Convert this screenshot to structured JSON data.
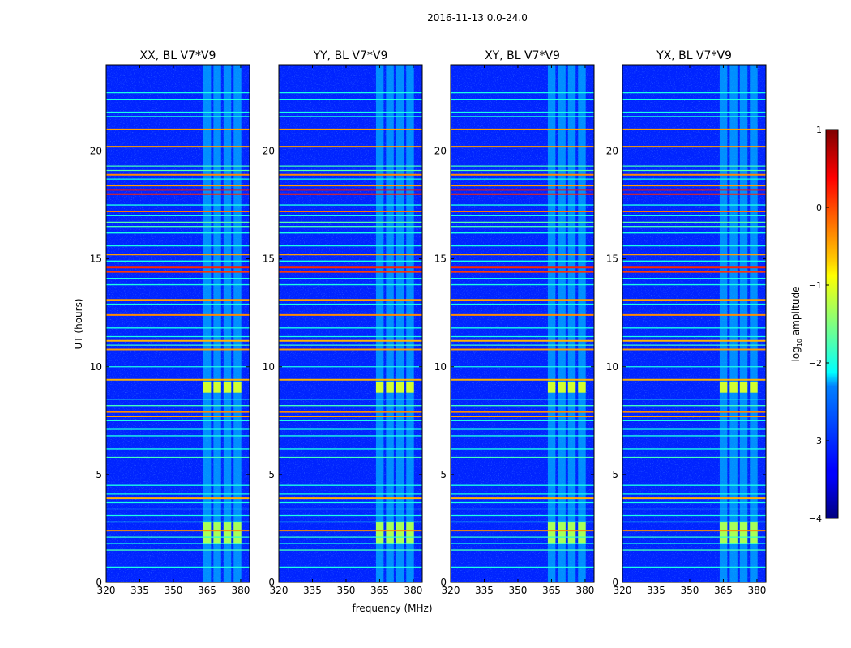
{
  "figure": {
    "suptitle": "2016-11-13 0.0-24.0",
    "xlabel": "frequency (MHz)",
    "ylabel": "UT (hours)"
  },
  "chart_data": {
    "type": "heatmap",
    "title": "2016-11-13 0.0-24.0",
    "xlabel": "frequency (MHz)",
    "ylabel": "UT (hours)",
    "xlim": [
      320,
      384
    ],
    "ylim": [
      0,
      24
    ],
    "xticks": [
      320,
      335,
      350,
      365,
      380
    ],
    "yticks": [
      0,
      5,
      10,
      15,
      20
    ],
    "panels": [
      {
        "title": "XX, BL V7*V9",
        "pol": "XX"
      },
      {
        "title": "YY, BL V7*V9",
        "pol": "YY"
      },
      {
        "title": "XY, BL V7*V9",
        "pol": "XY"
      },
      {
        "title": "YX, BL V7*V9",
        "pol": "YX"
      }
    ],
    "colorbar": {
      "label_prefix": "log",
      "label_sub": "10",
      "label_suffix": " amplitude",
      "range": [
        -4,
        1
      ],
      "ticks": [
        -4,
        -3,
        -2,
        -1,
        0,
        1
      ],
      "tick_labels": [
        "−4",
        "−3",
        "−2",
        "−1",
        "0",
        "1"
      ],
      "colormap": "jet"
    },
    "background_level": -3.2,
    "rfi_band_mhz": [
      363,
      381
    ],
    "rfi_band_level": -2.4,
    "strong_rfi_blocks": [
      {
        "ut": [
          8.8,
          9.3
        ],
        "level": -1.1
      },
      {
        "ut": [
          1.8,
          2.8
        ],
        "level": -1.3
      }
    ],
    "horizontal_rfi_lines": [
      {
        "ut": 0.7,
        "level": -2.0
      },
      {
        "ut": 1.5,
        "level": -1.8
      },
      {
        "ut": 1.8,
        "level": -2.0
      },
      {
        "ut": 2.1,
        "level": -1.9
      },
      {
        "ut": 2.4,
        "level": -0.3
      },
      {
        "ut": 2.8,
        "level": -2.0
      },
      {
        "ut": 3.1,
        "level": -2.0
      },
      {
        "ut": 3.4,
        "level": -2.0
      },
      {
        "ut": 3.7,
        "level": -2.0
      },
      {
        "ut": 3.9,
        "level": -0.5
      },
      {
        "ut": 4.1,
        "level": -2.0
      },
      {
        "ut": 4.5,
        "level": -2.0
      },
      {
        "ut": 5.8,
        "level": -1.8
      },
      {
        "ut": 6.2,
        "level": -2.0
      },
      {
        "ut": 6.8,
        "level": -2.0
      },
      {
        "ut": 7.1,
        "level": -2.0
      },
      {
        "ut": 7.5,
        "level": -2.0
      },
      {
        "ut": 7.7,
        "level": -0.4
      },
      {
        "ut": 7.9,
        "level": -0.3
      },
      {
        "ut": 8.2,
        "level": -1.8
      },
      {
        "ut": 8.5,
        "level": -2.0
      },
      {
        "ut": 9.4,
        "level": -0.5
      },
      {
        "ut": 10.0,
        "level": -2.0
      },
      {
        "ut": 10.8,
        "level": -0.4
      },
      {
        "ut": 11.0,
        "level": -1.8
      },
      {
        "ut": 11.2,
        "level": -0.5
      },
      {
        "ut": 11.4,
        "level": -2.0
      },
      {
        "ut": 11.8,
        "level": -2.0
      },
      {
        "ut": 12.4,
        "level": -0.3
      },
      {
        "ut": 12.9,
        "level": -2.0
      },
      {
        "ut": 13.1,
        "level": -0.4
      },
      {
        "ut": 13.8,
        "level": -2.0
      },
      {
        "ut": 14.1,
        "level": -2.0
      },
      {
        "ut": 14.4,
        "level": 0.1
      },
      {
        "ut": 14.6,
        "level": 0.2
      },
      {
        "ut": 14.9,
        "level": -2.0
      },
      {
        "ut": 15.2,
        "level": -0.4
      },
      {
        "ut": 15.6,
        "level": -2.0
      },
      {
        "ut": 16.2,
        "level": -2.0
      },
      {
        "ut": 16.5,
        "level": -1.8
      },
      {
        "ut": 16.7,
        "level": -1.7
      },
      {
        "ut": 17.0,
        "level": -2.0
      },
      {
        "ut": 17.2,
        "level": -0.2
      },
      {
        "ut": 17.5,
        "level": -2.0
      },
      {
        "ut": 18.0,
        "level": 0.2
      },
      {
        "ut": 18.2,
        "level": 0.3
      },
      {
        "ut": 18.4,
        "level": -0.4
      },
      {
        "ut": 18.7,
        "level": -2.0
      },
      {
        "ut": 18.9,
        "level": -0.3
      },
      {
        "ut": 19.1,
        "level": -1.7
      },
      {
        "ut": 19.3,
        "level": -1.8
      },
      {
        "ut": 20.2,
        "level": -0.4
      },
      {
        "ut": 21.0,
        "level": -0.4
      },
      {
        "ut": 21.6,
        "level": -2.0
      },
      {
        "ut": 21.8,
        "level": -2.0
      },
      {
        "ut": 22.4,
        "level": -2.0
      },
      {
        "ut": 22.7,
        "level": -2.0
      }
    ]
  }
}
